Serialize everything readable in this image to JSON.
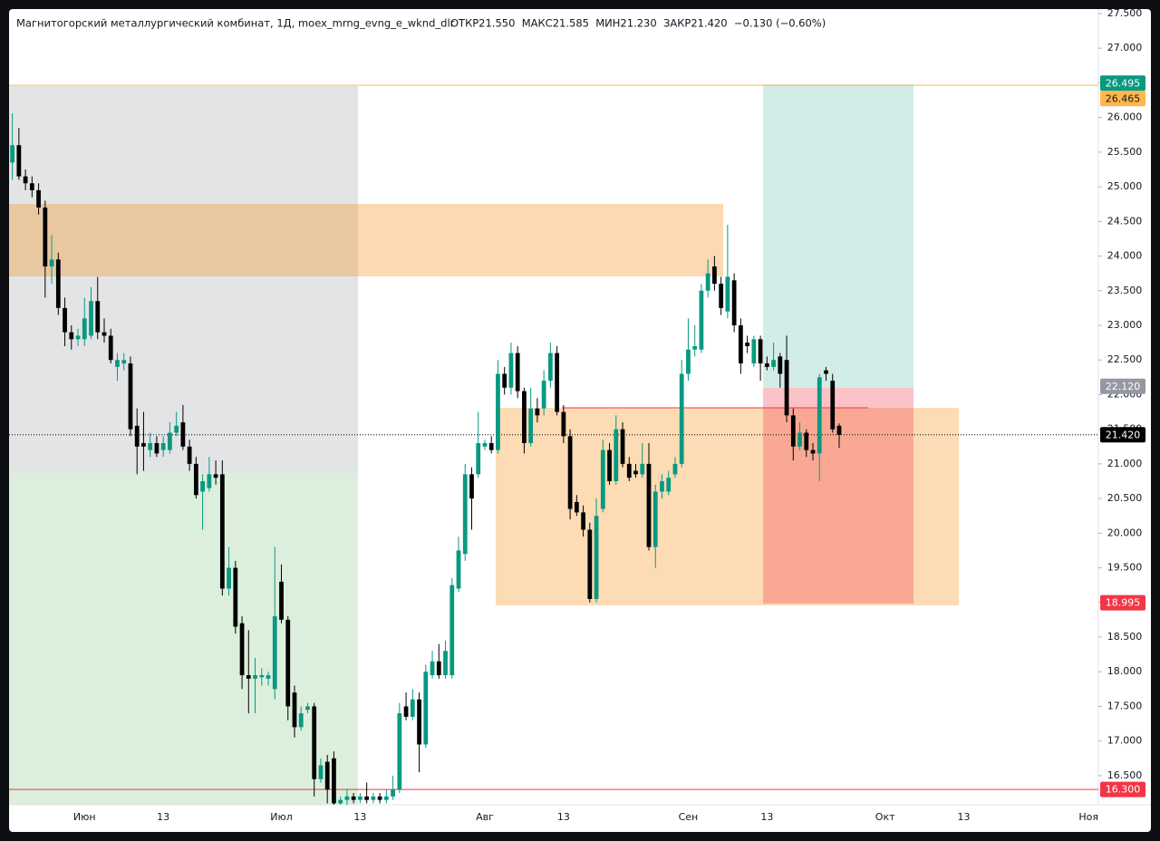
{
  "chart_data": {
    "type": "candlestick",
    "title": "Магнитогорский металлургический комбинат, 1Д, moex_mrng_evng_e_wknd_dlr",
    "legend_text": "ОТКР21.550  МАКС21.585  МИН21.230  ЗАКР21.420  −0.130 (−0.60%)",
    "up_color": "#089981",
    "down_color": "#000000",
    "categories": [
      null,
      null,
      null,
      null,
      null,
      null,
      null,
      null,
      null,
      null,
      null,
      "Июн",
      null,
      null,
      null,
      null,
      null,
      null,
      null,
      null,
      null,
      null,
      null,
      "13",
      null,
      null,
      null,
      null,
      null,
      null,
      null,
      null,
      null,
      null,
      null,
      null,
      null,
      null,
      null,
      null,
      null,
      "Июл",
      null,
      null,
      null,
      null,
      null,
      null,
      null,
      null,
      null,
      null,
      null,
      "13",
      null,
      null,
      null,
      null,
      null,
      null,
      null,
      null,
      null,
      null,
      null,
      null,
      null,
      null,
      null,
      null,
      null,
      null,
      "Авг",
      null,
      null,
      null,
      null,
      null,
      null,
      null,
      null,
      null,
      null,
      null,
      "13",
      null,
      null,
      null,
      null,
      null,
      null,
      null,
      null,
      null,
      null,
      null,
      null,
      null,
      null,
      null,
      null,
      null,
      null,
      "Сен",
      null,
      null,
      null,
      null,
      null,
      null,
      null,
      null,
      null,
      null,
      null,
      "13",
      null,
      null,
      null,
      null,
      null,
      null,
      null,
      null,
      null,
      null,
      null,
      null,
      null,
      null,
      null,
      null,
      null,
      "Окт",
      null,
      null,
      null,
      null,
      null,
      null,
      null,
      null,
      null,
      null,
      null,
      "13",
      null,
      null,
      null,
      null,
      null,
      null,
      null,
      null,
      null,
      null,
      null,
      null,
      null,
      null,
      null,
      null,
      null,
      null,
      "Ноя",
      null
    ],
    "open": [
      25.35,
      25.6,
      25.15,
      25.05,
      24.95,
      24.7,
      23.85,
      23.95,
      23.25,
      22.9,
      22.8,
      22.8,
      22.85,
      23.35,
      22.9,
      22.85,
      22.4,
      22.45,
      22.45,
      21.55,
      21.3,
      21.2,
      21.3,
      21.2,
      21.2,
      21.45,
      21.6,
      21.25,
      21.0,
      20.6,
      20.65,
      20.85,
      20.85,
      19.2,
      19.5,
      18.7,
      17.95,
      17.9,
      17.92,
      17.9,
      17.75,
      19.3,
      18.75,
      17.7,
      17.2,
      17.45,
      17.5,
      16.45,
      16.7,
      16.75,
      16.1,
      16.15,
      16.2,
      16.15,
      16.2,
      16.15,
      16.2,
      16.15,
      16.2,
      16.3,
      17.5,
      17.35,
      17.6,
      16.95,
      17.95,
      18.15,
      17.95,
      17.95,
      19.2,
      19.7,
      20.85,
      20.85,
      21.25,
      21.3,
      21.2,
      22.3,
      22.1,
      22.6,
      22.05,
      21.3,
      21.8,
      21.8,
      22.2,
      22.6,
      21.75,
      21.4,
      20.45,
      20.3,
      20.05,
      19.05,
      20.35,
      21.2,
      20.75,
      21.5,
      21.0,
      20.9,
      20.85,
      21.0,
      19.8,
      20.6,
      20.6,
      20.85,
      21.0,
      22.3,
      22.65,
      22.65,
      23.5,
      23.85,
      23.6,
      23.2,
      23.65,
      23.0,
      22.75,
      22.45,
      22.8,
      22.45,
      22.4,
      22.55,
      22.5,
      21.7,
      21.25,
      21.45,
      21.2,
      21.15,
      22.35,
      22.2,
      21.55,
      null,
      null,
      null,
      null,
      null,
      null,
      null,
      null,
      null,
      null,
      null,
      null,
      null,
      null,
      null,
      null,
      null,
      null,
      null,
      null,
      null,
      null,
      null,
      null,
      null,
      null,
      null,
      null,
      null,
      null,
      null,
      null,
      null,
      null,
      null,
      null,
      null,
      null,
      null
    ],
    "high": [
      26.06,
      25.85,
      25.25,
      25.15,
      25.05,
      24.8,
      24.3,
      24.05,
      23.4,
      23.0,
      22.95,
      23.4,
      23.55,
      23.7,
      23.1,
      22.95,
      22.6,
      22.6,
      22.55,
      21.8,
      21.75,
      21.45,
      21.4,
      21.4,
      21.6,
      21.75,
      21.85,
      21.35,
      21.1,
      20.85,
      21.1,
      21.05,
      21.05,
      19.8,
      19.6,
      18.8,
      18.6,
      18.2,
      18.05,
      18.0,
      19.8,
      19.55,
      18.8,
      17.8,
      17.5,
      17.55,
      17.55,
      16.75,
      16.8,
      16.85,
      16.2,
      16.3,
      16.25,
      16.25,
      16.4,
      16.25,
      16.25,
      16.3,
      16.5,
      17.55,
      17.7,
      17.75,
      17.7,
      18.1,
      18.3,
      18.4,
      18.45,
      19.35,
      19.95,
      21.0,
      20.95,
      21.75,
      21.35,
      21.4,
      22.5,
      22.4,
      22.75,
      22.7,
      22.1,
      22.1,
      21.95,
      22.35,
      22.75,
      22.7,
      21.85,
      21.5,
      20.55,
      20.4,
      20.15,
      20.5,
      21.35,
      21.3,
      21.7,
      21.6,
      21.1,
      21.0,
      21.3,
      21.3,
      20.7,
      20.85,
      20.9,
      21.1,
      22.5,
      23.1,
      23.0,
      23.6,
      23.95,
      24.0,
      23.7,
      24.45,
      23.75,
      23.1,
      22.85,
      22.85,
      22.85,
      22.55,
      22.75,
      22.6,
      22.85,
      21.8,
      21.6,
      21.5,
      21.3,
      22.3,
      22.4,
      22.3,
      21.585,
      null,
      null,
      null,
      null,
      null,
      null,
      null,
      null,
      null,
      null,
      null,
      null,
      null,
      null,
      null,
      null,
      null,
      null,
      null,
      null,
      null,
      null,
      null,
      null,
      null,
      null,
      null,
      null,
      null,
      null,
      null,
      null,
      null,
      null,
      null,
      null,
      null,
      null,
      null
    ],
    "low": [
      25.1,
      25.1,
      24.95,
      24.85,
      24.6,
      23.4,
      23.6,
      23.15,
      22.7,
      22.65,
      22.7,
      22.7,
      22.8,
      22.8,
      22.75,
      22.45,
      22.2,
      22.35,
      21.4,
      20.85,
      20.9,
      21.1,
      21.1,
      21.1,
      21.15,
      21.4,
      21.2,
      20.9,
      20.5,
      20.05,
      20.6,
      20.7,
      19.1,
      19.1,
      18.55,
      17.75,
      17.4,
      17.4,
      17.8,
      17.8,
      17.6,
      18.7,
      17.3,
      17.05,
      17.15,
      17.4,
      16.2,
      16.4,
      16.1,
      16.05,
      16.05,
      16.08,
      16.1,
      16.1,
      16.1,
      16.1,
      16.1,
      16.1,
      16.15,
      16.25,
      17.3,
      17.3,
      16.55,
      16.9,
      17.9,
      17.9,
      17.9,
      17.9,
      19.15,
      19.6,
      20.05,
      20.8,
      21.2,
      21.15,
      21.15,
      22.0,
      22.0,
      21.95,
      21.15,
      21.25,
      21.6,
      21.7,
      22.1,
      21.7,
      21.3,
      20.2,
      20.25,
      19.95,
      19.0,
      19.0,
      20.3,
      20.7,
      20.7,
      20.95,
      20.75,
      20.8,
      20.8,
      19.75,
      19.5,
      20.5,
      20.55,
      20.8,
      20.95,
      22.2,
      22.55,
      22.6,
      23.4,
      23.5,
      23.15,
      23.1,
      22.9,
      22.3,
      22.6,
      22.4,
      22.2,
      22.35,
      22.35,
      22.1,
      21.6,
      21.05,
      21.2,
      21.1,
      21.05,
      20.75,
      22.2,
      21.45,
      21.23,
      null,
      null,
      null,
      null,
      null,
      null,
      null,
      null,
      null,
      null,
      null,
      null,
      null,
      null,
      null,
      null,
      null,
      null,
      null,
      null,
      null,
      null,
      null,
      null,
      null,
      null,
      null,
      null,
      null,
      null,
      null,
      null,
      null,
      null,
      null,
      null,
      null,
      null,
      null
    ],
    "close": [
      25.6,
      25.15,
      25.05,
      24.95,
      24.7,
      23.85,
      23.95,
      23.25,
      22.9,
      22.8,
      22.85,
      23.1,
      23.35,
      22.9,
      22.85,
      22.5,
      22.5,
      22.5,
      21.5,
      21.25,
      21.25,
      21.3,
      21.15,
      21.3,
      21.45,
      21.55,
      21.25,
      21.0,
      20.55,
      20.75,
      20.85,
      20.8,
      19.2,
      19.5,
      18.65,
      17.95,
      17.9,
      17.95,
      17.95,
      17.95,
      18.8,
      18.75,
      17.5,
      17.2,
      17.4,
      17.5,
      16.45,
      16.65,
      16.3,
      16.1,
      16.15,
      16.2,
      16.15,
      16.2,
      16.15,
      16.2,
      16.15,
      16.2,
      16.3,
      17.4,
      17.35,
      17.6,
      16.95,
      18.0,
      18.15,
      17.95,
      18.3,
      19.25,
      19.75,
      20.85,
      20.5,
      21.3,
      21.3,
      21.2,
      22.3,
      22.1,
      22.6,
      22.05,
      21.3,
      21.8,
      21.7,
      22.2,
      22.6,
      21.75,
      21.4,
      20.35,
      20.3,
      20.05,
      19.05,
      20.25,
      21.2,
      20.75,
      21.5,
      21.0,
      20.8,
      20.85,
      21.0,
      19.8,
      20.6,
      20.75,
      20.8,
      21.0,
      22.3,
      22.65,
      22.7,
      23.5,
      23.75,
      23.6,
      23.25,
      23.7,
      23.0,
      22.45,
      22.7,
      22.8,
      22.45,
      22.4,
      22.5,
      22.3,
      21.7,
      21.25,
      21.45,
      21.2,
      21.15,
      22.25,
      22.3,
      21.5,
      21.42,
      null,
      null,
      null,
      null,
      null,
      null,
      null,
      null,
      null,
      null,
      null,
      null,
      null,
      null,
      null,
      null,
      null,
      null,
      null,
      null,
      null,
      null,
      null,
      null,
      null,
      null,
      null,
      null,
      null,
      null,
      null,
      null,
      null,
      null,
      null,
      null,
      null,
      null,
      null
    ],
    "ylim": [
      16.08,
      27.565
    ],
    "yticks": [
      {
        "value": 16.5,
        "label": "16.500"
      },
      {
        "value": 17,
        "label": "17.000"
      },
      {
        "value": 17.5,
        "label": "17.500"
      },
      {
        "value": 18,
        "label": "18.000"
      },
      {
        "value": 18.5,
        "label": "18.500"
      },
      {
        "value": 19,
        "label": "19.000"
      },
      {
        "value": 19.5,
        "label": "19.500"
      },
      {
        "value": 20,
        "label": "20.000"
      },
      {
        "value": 20.5,
        "label": "20.500"
      },
      {
        "value": 21,
        "label": "21.000"
      },
      {
        "value": 21.5,
        "label": "21.500"
      },
      {
        "value": 22,
        "label": "22.000"
      },
      {
        "value": 22.5,
        "label": "22.500"
      },
      {
        "value": 23,
        "label": "23.000"
      },
      {
        "value": 23.5,
        "label": "23.500"
      },
      {
        "value": 24,
        "label": "24.000"
      },
      {
        "value": 24.5,
        "label": "24.500"
      },
      {
        "value": 25,
        "label": "25.000"
      },
      {
        "value": 25.5,
        "label": "25.500"
      },
      {
        "value": 26,
        "label": "26.000"
      },
      {
        "value": 26.5,
        "label": "26.500"
      },
      {
        "value": 27,
        "label": "27.000"
      },
      {
        "value": 27.5,
        "label": "27.500"
      }
    ],
    "price_labels": [
      {
        "value": 26.495,
        "label": "26.495",
        "color": "#089981"
      },
      {
        "value": 26.465,
        "label": "26.465",
        "color": "#ffb74d",
        "line": "solid"
      },
      {
        "value": 22.12,
        "label": "22.120",
        "color": "#9598a1"
      },
      {
        "value": 21.42,
        "label": "21.420",
        "color": "#000000",
        "line": "dotted"
      },
      {
        "value": 18.995,
        "label": "18.995",
        "color": "#f23645"
      },
      {
        "value": 16.3,
        "label": "16.300",
        "color": "#f23645",
        "line": "solid"
      }
    ]
  }
}
